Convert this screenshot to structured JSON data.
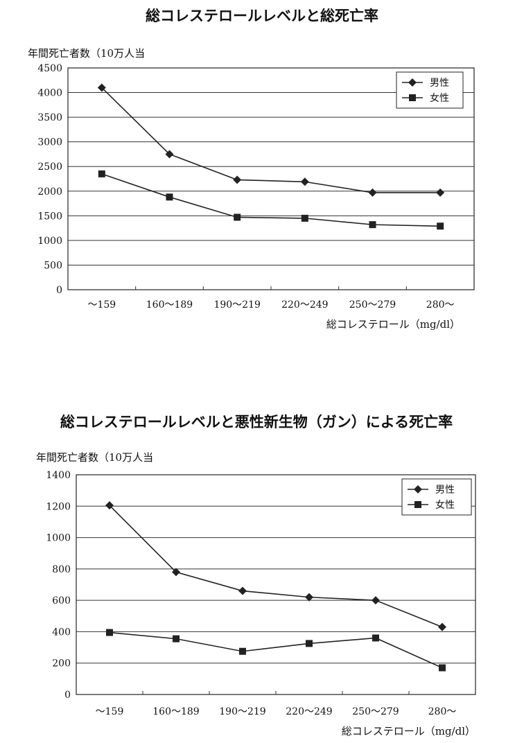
{
  "chart_data": [
    {
      "type": "line",
      "title": "総コレステロールレベルと総死亡率",
      "ylabel": "年間死亡者数（10万人当",
      "xlabel": "総コレステロール（mg/dl）",
      "categories": [
        "～159",
        "160～189",
        "190～219",
        "220～249",
        "250～279",
        "280～"
      ],
      "ylim": [
        0,
        4500
      ],
      "yticks": [
        0,
        500,
        1000,
        1500,
        2000,
        2500,
        3000,
        3500,
        4000,
        4500
      ],
      "grid": true,
      "legend_position": "top-right",
      "series": [
        {
          "name": "男性",
          "marker": "diamond",
          "values": [
            4100,
            2750,
            2230,
            2190,
            1970,
            1970
          ]
        },
        {
          "name": "女性",
          "marker": "square",
          "values": [
            2350,
            1880,
            1470,
            1450,
            1320,
            1290
          ]
        }
      ]
    },
    {
      "type": "line",
      "title": "総コレステロールレベルと悪性新生物（ガン）による死亡率",
      "ylabel": "年間死亡者数（10万人当",
      "xlabel": "総コレステロール（mg/dl）",
      "categories": [
        "～159",
        "160～189",
        "190～219",
        "220～249",
        "250～279",
        "280～"
      ],
      "ylim": [
        0,
        1400
      ],
      "yticks": [
        0,
        200,
        400,
        600,
        800,
        1000,
        1200,
        1400
      ],
      "grid": true,
      "legend_position": "top-right",
      "series": [
        {
          "name": "男性",
          "marker": "diamond",
          "values": [
            1205,
            780,
            660,
            620,
            600,
            430
          ]
        },
        {
          "name": "女性",
          "marker": "square",
          "values": [
            395,
            355,
            275,
            325,
            360,
            170
          ]
        }
      ]
    }
  ]
}
